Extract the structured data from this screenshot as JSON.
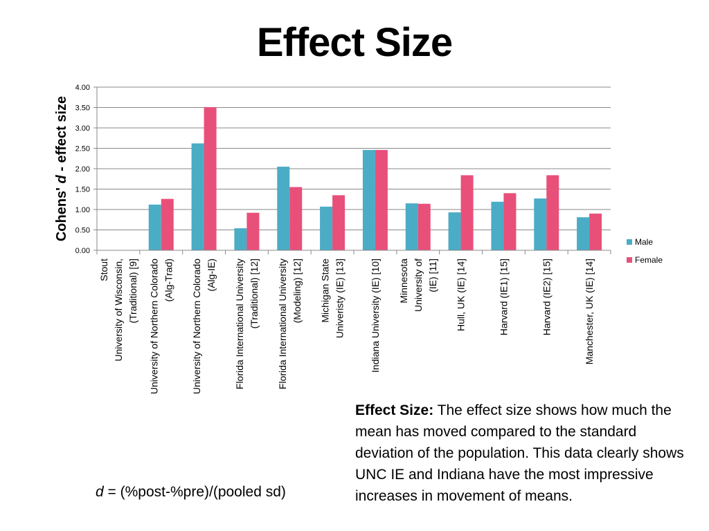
{
  "slide": {
    "title": "Effect Size",
    "formula": {
      "variable": "d",
      "expression": "= (%post-%pre)/(pooled sd)"
    },
    "note": {
      "lead": "Effect Size:",
      "body": "The effect size shows how much the mean has moved compared to the standard deviation of the population. This data clearly shows UNC IE and Indiana have the most impressive increases in movement of means."
    }
  },
  "colors": {
    "male": "#4bacc6",
    "female": "#e8507a",
    "grid": "#888888",
    "axis": "#888888"
  },
  "chart_data": {
    "type": "bar",
    "title": "",
    "xlabel": "",
    "ylabel_parts": [
      "Cohens' ",
      "d",
      " - effect size"
    ],
    "ylim": [
      0,
      4
    ],
    "y_ticks": [
      "0.00",
      "0.50",
      "1.00",
      "1.50",
      "2.00",
      "2.50",
      "3.00",
      "3.50",
      "4.00"
    ],
    "grid": true,
    "legend_position": "right",
    "categories": [
      [
        "Stout",
        "University of Wisconsin,",
        "(Traditional) [9]"
      ],
      [
        "University of Northern Colorado",
        "(Alg-Trad)"
      ],
      [
        "University of Northern Colorado",
        "(Alg-IE)"
      ],
      [
        "Florida International University",
        "(Traditional) [12]"
      ],
      [
        "Florida International University",
        "(Modeling) [12]"
      ],
      [
        "Michigan State",
        "Univeristy (IE) [13]"
      ],
      [
        "Indiana University (IE) [10]"
      ],
      [
        "Minnesota",
        "University of",
        "(IE) [11]"
      ],
      [
        "Hull, UK (IE) [14]"
      ],
      [
        "Harvard (IE1) [15]"
      ],
      [
        "Harvard (IE2) [15]"
      ],
      [
        "Manchester, UK (IE) [14]"
      ]
    ],
    "series": [
      {
        "name": "Male",
        "values": [
          null,
          1.12,
          2.62,
          0.54,
          2.05,
          1.07,
          2.46,
          1.15,
          0.93,
          1.19,
          1.27,
          0.81
        ]
      },
      {
        "name": "Female",
        "values": [
          null,
          1.26,
          3.51,
          0.92,
          1.55,
          1.35,
          2.46,
          1.14,
          1.84,
          1.4,
          1.84,
          0.9
        ]
      }
    ]
  }
}
